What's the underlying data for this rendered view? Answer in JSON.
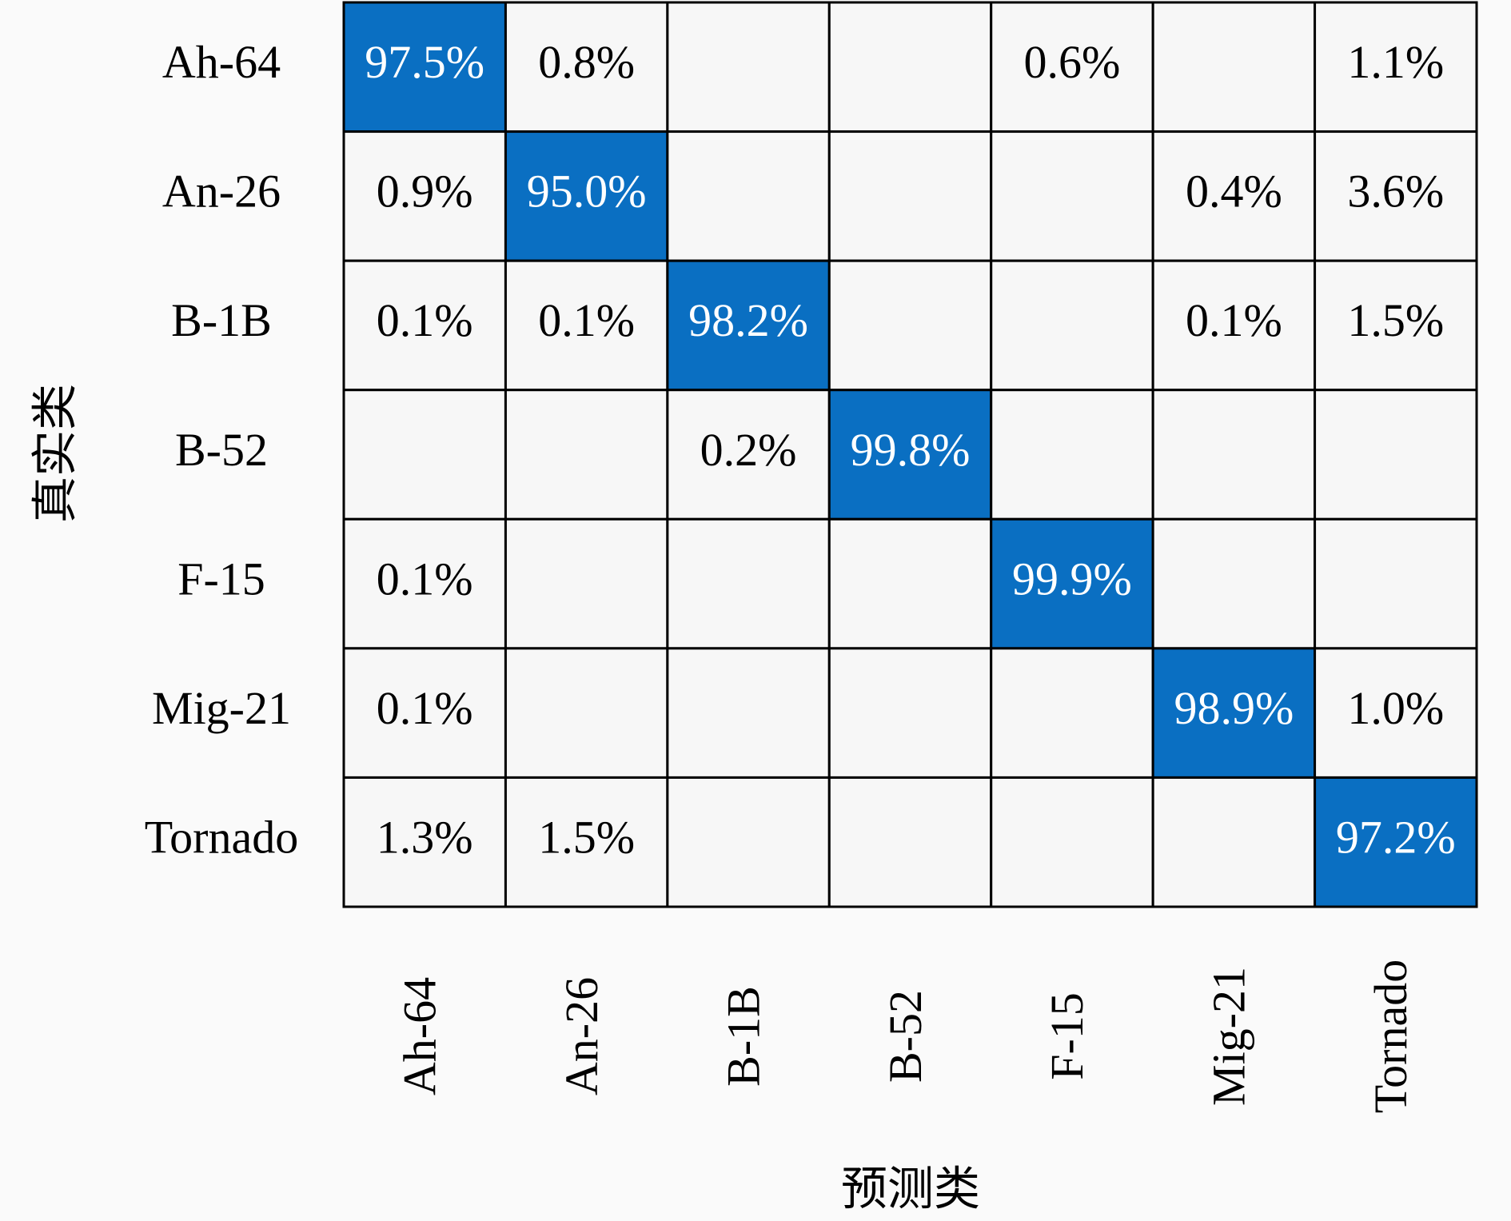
{
  "chart_data": {
    "type": "heatmap",
    "xlabel": "预测类",
    "ylabel": "真实类",
    "row_labels": [
      "Ah-64",
      "An-26",
      "B-1B",
      "B-52",
      "F-15",
      "Mig-21",
      "Tornado"
    ],
    "column_labels": [
      "Ah-64",
      "An-26",
      "B-1B",
      "B-52",
      "F-15",
      "Mig-21",
      "Tornado"
    ],
    "values": [
      [
        97.5,
        0.8,
        null,
        null,
        0.6,
        null,
        1.1
      ],
      [
        0.9,
        95.0,
        null,
        null,
        null,
        0.4,
        3.6
      ],
      [
        0.1,
        0.1,
        98.2,
        null,
        null,
        0.1,
        1.5
      ],
      [
        null,
        null,
        0.2,
        99.8,
        null,
        null,
        null
      ],
      [
        0.1,
        null,
        null,
        null,
        99.9,
        null,
        null
      ],
      [
        0.1,
        null,
        null,
        null,
        null,
        98.9,
        1.0
      ],
      [
        1.3,
        1.5,
        null,
        null,
        null,
        null,
        97.2
      ]
    ],
    "value_labels": [
      [
        "97.5%",
        "0.8%",
        null,
        null,
        "0.6%",
        null,
        "1.1%"
      ],
      [
        "0.9%",
        "95.0%",
        null,
        null,
        null,
        "0.4%",
        "3.6%"
      ],
      [
        "0.1%",
        "0.1%",
        "98.2%",
        null,
        null,
        "0.1%",
        "1.5%"
      ],
      [
        null,
        null,
        "0.2%",
        "99.8%",
        null,
        null,
        null
      ],
      [
        "0.1%",
        null,
        null,
        null,
        "99.9%",
        null,
        null
      ],
      [
        "0.1%",
        null,
        null,
        null,
        null,
        "98.9%",
        "1.0%"
      ],
      [
        "1.3%",
        "1.5%",
        null,
        null,
        null,
        null,
        "97.2%"
      ]
    ],
    "color": "#0a6fc2",
    "cell_color": "#f7f7f7",
    "background_color": "#fafafa"
  }
}
